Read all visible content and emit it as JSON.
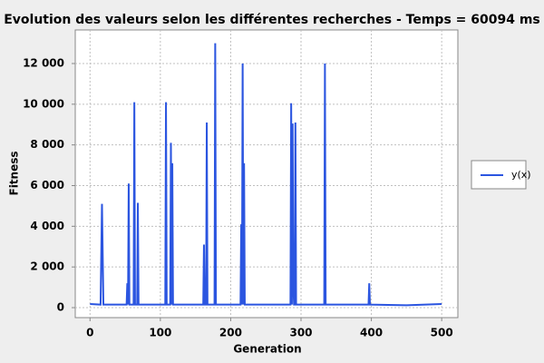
{
  "chart_data": {
    "type": "line",
    "title": "Evolution des valeurs selon les différentes recherches - Temps = 60094 ms",
    "x_label": "Generation",
    "y_label": "Fitness",
    "x": [
      0,
      15,
      17,
      19,
      52,
      53,
      54,
      55,
      56,
      62,
      63,
      64,
      67,
      68,
      69,
      107,
      108,
      109,
      114,
      115,
      116,
      117,
      118,
      161,
      162,
      163,
      165,
      166,
      167,
      177,
      178,
      179,
      214,
      215,
      216,
      217,
      218,
      219,
      220,
      285,
      286,
      287,
      288,
      289,
      290,
      291,
      292,
      293,
      333,
      334,
      335,
      396,
      397,
      398,
      450,
      500
    ],
    "series": [
      {
        "name": "y(x)",
        "color": "#2b55e0",
        "values": [
          180,
          150,
          5100,
          150,
          150,
          1200,
          150,
          6100,
          150,
          150,
          10100,
          150,
          150,
          5150,
          150,
          150,
          10100,
          150,
          150,
          8100,
          150,
          7100,
          150,
          150,
          3100,
          150,
          150,
          9100,
          150,
          150,
          13000,
          150,
          150,
          4100,
          150,
          12000,
          150,
          7100,
          150,
          150,
          10050,
          150,
          9050,
          1200,
          150,
          150,
          9100,
          150,
          150,
          12000,
          150,
          150,
          1200,
          150,
          120,
          180
        ]
      }
    ],
    "xlim": [
      -21,
      523
    ],
    "xticks": [
      0,
      100,
      200,
      300,
      400,
      500
    ],
    "ylim": [
      -490,
      13650
    ],
    "yticks": [
      0,
      {
        "value": 2000,
        "label": "2 000"
      },
      {
        "value": 4000,
        "label": "4 000"
      },
      {
        "value": 6000,
        "label": "6 000"
      },
      {
        "value": 8000,
        "label": "8 000"
      },
      {
        "value": 10000,
        "label": "10 000"
      },
      {
        "value": 12000,
        "label": "12 000"
      }
    ],
    "grid": true,
    "legend": "right"
  }
}
